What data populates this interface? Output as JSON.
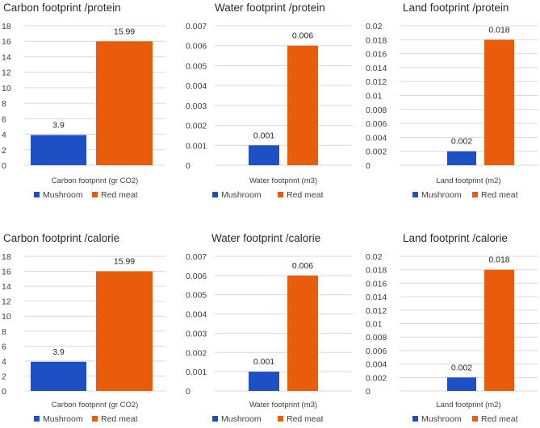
{
  "colors": {
    "mushroom": "#1f4fc4",
    "red_meat": "#e95c0c"
  },
  "chart_data": [
    {
      "type": "bar",
      "title": "Carbon footprint /protein",
      "categories": [
        "Carbon footprint (gr CO2)"
      ],
      "series": [
        {
          "name": "Mushroom",
          "values": [
            3.9
          ],
          "labels": [
            "3.9"
          ]
        },
        {
          "name": "Red meat",
          "values": [
            15.99
          ],
          "labels": [
            "15.99"
          ]
        }
      ],
      "ylim": [
        0,
        18
      ],
      "yticks": [
        "0",
        "2",
        "4",
        "6",
        "8",
        "10",
        "12",
        "14",
        "16",
        "18"
      ],
      "legend": "bottom"
    },
    {
      "type": "bar",
      "title": "Water footprint /protein",
      "categories": [
        "Water footprint (m3)"
      ],
      "series": [
        {
          "name": "Mushroom",
          "values": [
            0.001
          ],
          "labels": [
            "0.001"
          ]
        },
        {
          "name": "Red meat",
          "values": [
            0.006
          ],
          "labels": [
            "0.006"
          ]
        }
      ],
      "ylim": [
        0,
        0.007
      ],
      "yticks": [
        "0",
        "0.001",
        "0.002",
        "0.003",
        "0.004",
        "0.005",
        "0.006",
        "0.007"
      ],
      "legend": "bottom"
    },
    {
      "type": "bar",
      "title": "Land footprint /protein",
      "categories": [
        "Land footprint (m2)"
      ],
      "series": [
        {
          "name": "Mushroom",
          "values": [
            0.002
          ],
          "labels": [
            "0.002"
          ]
        },
        {
          "name": "Red meat",
          "values": [
            0.018
          ],
          "labels": [
            "0.018"
          ]
        }
      ],
      "ylim": [
        0,
        0.02
      ],
      "yticks": [
        "0",
        "0.002",
        "0.004",
        "0.006",
        "0.008",
        "0.01",
        "0.012",
        "0.014",
        "0.016",
        "0.018",
        "0.02"
      ],
      "legend": "bottom"
    },
    {
      "type": "bar",
      "title": "Carbon footprint /calorie",
      "categories": [
        "Carbon footprint (gr CO2)"
      ],
      "series": [
        {
          "name": "Mushroom",
          "values": [
            3.9
          ],
          "labels": [
            "3.9"
          ]
        },
        {
          "name": "Red meat",
          "values": [
            15.99
          ],
          "labels": [
            "15.99"
          ]
        }
      ],
      "ylim": [
        0,
        18
      ],
      "yticks": [
        "0",
        "2",
        "4",
        "6",
        "8",
        "10",
        "12",
        "14",
        "16",
        "18"
      ],
      "legend": "bottom"
    },
    {
      "type": "bar",
      "title": "Water footprint /calorie",
      "categories": [
        "Water footprint (m3)"
      ],
      "series": [
        {
          "name": "Mushroom",
          "values": [
            0.001
          ],
          "labels": [
            "0.001"
          ]
        },
        {
          "name": "Red meat",
          "values": [
            0.006
          ],
          "labels": [
            "0.006"
          ]
        }
      ],
      "ylim": [
        0,
        0.007
      ],
      "yticks": [
        "0",
        "0.001",
        "0.002",
        "0.003",
        "0.004",
        "0.005",
        "0.006",
        "0.007"
      ],
      "legend": "bottom"
    },
    {
      "type": "bar",
      "title": "Land footprint /calorie",
      "categories": [
        "Land footprint (m2)"
      ],
      "series": [
        {
          "name": "Mushroom",
          "values": [
            0.002
          ],
          "labels": [
            "0.002"
          ]
        },
        {
          "name": "Red meat",
          "values": [
            0.018
          ],
          "labels": [
            "0.018"
          ]
        }
      ],
      "ylim": [
        0,
        0.02
      ],
      "yticks": [
        "0",
        "0.002",
        "0.004",
        "0.006",
        "0.008",
        "0.01",
        "0.012",
        "0.014",
        "0.016",
        "0.018",
        "0.02"
      ],
      "legend": "bottom"
    }
  ]
}
